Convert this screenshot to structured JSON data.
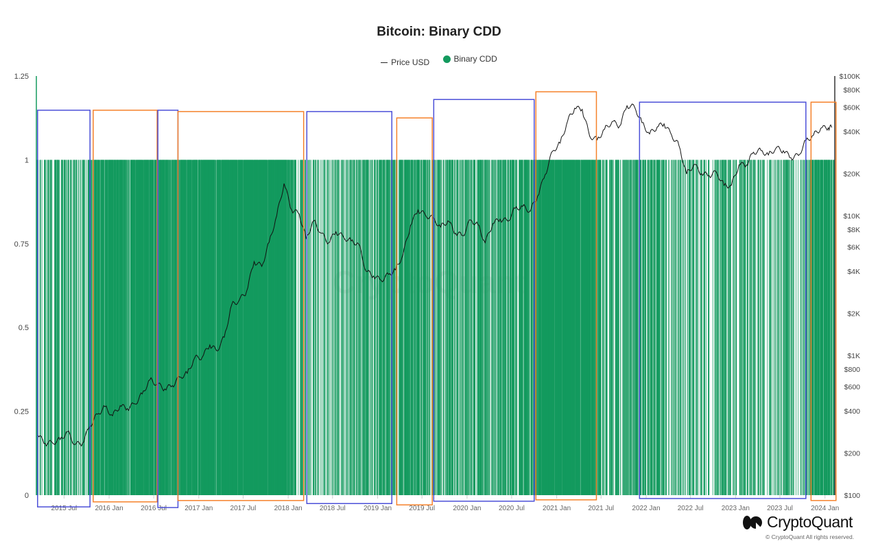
{
  "chart_data": {
    "type": "bar",
    "title": "Bitcoin: Binary CDD",
    "legend": [
      {
        "name": "Price USD",
        "color": "#222222",
        "marker": "line"
      },
      {
        "name": "Binary CDD",
        "color": "#139a5e",
        "marker": "dot"
      }
    ],
    "legend_placement": "top-center",
    "grid": false,
    "x_range": [
      "2015-03-10",
      "2024-02-10"
    ],
    "x_tick_labels": [
      "2015 Jul",
      "2016 Jan",
      "2016 Jul",
      "2017 Jan",
      "2017 Jul",
      "2018 Jan",
      "2018 Jul",
      "2019 Jan",
      "2019 Jul",
      "2020 Jan",
      "2020 Jul",
      "2021 Jan",
      "2021 Jul",
      "2022 Jan",
      "2022 Jul",
      "2023 Jan",
      "2023 Jul",
      "2024 Jan"
    ],
    "x_ticks": [
      "2015-07-01",
      "2016-01-01",
      "2016-07-01",
      "2017-01-01",
      "2017-07-01",
      "2018-01-01",
      "2018-07-01",
      "2019-01-01",
      "2019-07-01",
      "2020-01-01",
      "2020-07-01",
      "2021-01-01",
      "2021-07-01",
      "2022-01-01",
      "2022-07-01",
      "2023-01-01",
      "2023-07-01",
      "2024-01-01"
    ],
    "y_left": {
      "range": [
        0,
        1.25
      ],
      "ticks": [
        0,
        0.25,
        0.5,
        0.75,
        1,
        1.25
      ],
      "tick_labels": [
        "0",
        "0.25",
        "0.5",
        "0.75",
        "1",
        "1.25"
      ]
    },
    "y_right": {
      "scale": "log",
      "range": [
        100,
        100000
      ],
      "ticks": [
        100,
        200,
        400,
        600,
        800,
        1000,
        2000,
        4000,
        6000,
        8000,
        10000,
        20000,
        40000,
        60000,
        80000,
        100000
      ],
      "tick_labels": [
        "$100",
        "$200",
        "$400",
        "$600",
        "$800",
        "$1K",
        "$2K",
        "$4K",
        "$6K",
        "$8K",
        "$10K",
        "$20K",
        "$40K",
        "$60K",
        "$80K",
        "$100K"
      ]
    },
    "price_usd": {
      "name": "Price USD",
      "start_month": "2015-03",
      "monthly_values": [
        270,
        235,
        237,
        250,
        285,
        230,
        236,
        315,
        380,
        430,
        370,
        437,
        416,
        450,
        530,
        670,
        624,
        575,
        608,
        700,
        745,
        960,
        970,
        1190,
        1080,
        1350,
        2300,
        2480,
        2870,
        4700,
        4340,
        6450,
        10000,
        17000,
        11000,
        10300,
        6900,
        9200,
        7500,
        6400,
        7700,
        7000,
        6600,
        6300,
        4000,
        3700,
        3450,
        3800,
        4100,
        5300,
        8500,
        11000,
        10100,
        9600,
        8300,
        9200,
        7500,
        7200,
        9350,
        8600,
        6400,
        8800,
        9450,
        9150,
        11300,
        11650,
        10800,
        13800,
        19700,
        29000,
        33100,
        48000,
        58800,
        57700,
        37300,
        35000,
        41500,
        47100,
        43800,
        61300,
        60000,
        46300,
        38500,
        43200,
        45500,
        37700,
        31800,
        19900,
        23300,
        20000,
        19400,
        20500,
        16500,
        16500,
        23100,
        23100,
        28500,
        29300,
        27200,
        30500,
        29200,
        26000,
        27000,
        34500,
        37700,
        42300,
        42600,
        43000
      ]
    },
    "binary_cdd": {
      "name": "Binary CDD",
      "values_domain": [
        0,
        1
      ],
      "start_month": "2015-03",
      "monthly_share_of_days_1": [
        0.4,
        0.35,
        0.4,
        0.45,
        0.4,
        0.45,
        0.4,
        0.5,
        0.85,
        0.9,
        0.9,
        0.85,
        0.85,
        0.9,
        0.9,
        0.9,
        0.85,
        0.8,
        0.85,
        0.9,
        0.9,
        0.9,
        0.9,
        0.92,
        0.92,
        0.92,
        0.95,
        0.95,
        0.95,
        0.95,
        0.95,
        0.95,
        0.95,
        0.95,
        0.7,
        0.5,
        0.4,
        0.4,
        0.35,
        0.4,
        0.4,
        0.4,
        0.4,
        0.45,
        0.55,
        0.6,
        0.6,
        0.6,
        0.65,
        0.7,
        0.8,
        0.75,
        0.6,
        0.55,
        0.55,
        0.55,
        0.55,
        0.55,
        0.55,
        0.5,
        0.6,
        0.55,
        0.5,
        0.55,
        0.6,
        0.6,
        0.65,
        0.85,
        0.95,
        0.97,
        0.97,
        0.95,
        0.95,
        0.9,
        0.95,
        0.85,
        0.6,
        0.55,
        0.55,
        0.6,
        0.55,
        0.5,
        0.45,
        0.4,
        0.35,
        0.35,
        0.4,
        0.45,
        0.35,
        0.3,
        0.3,
        0.35,
        0.4,
        0.35,
        0.35,
        0.35,
        0.35,
        0.3,
        0.3,
        0.3,
        0.3,
        0.3,
        0.3,
        0.45,
        0.7,
        0.75,
        0.75,
        0.75
      ]
    },
    "annotations": [
      {
        "type": "box",
        "color": "#4b4fd8",
        "start": "2015-03-15",
        "end": "2015-10-15",
        "y_top": 1.148,
        "y_bottom": -0.035
      },
      {
        "type": "box",
        "color": "#f5812a",
        "start": "2015-10-28",
        "end": "2016-07-15",
        "y_top": 1.148,
        "y_bottom": -0.02
      },
      {
        "type": "box",
        "color": "#4b4fd8",
        "start": "2016-07-18",
        "end": "2016-10-08",
        "y_top": 1.148,
        "y_bottom": -0.037
      },
      {
        "type": "box",
        "color": "#f5812a",
        "start": "2016-10-08",
        "end": "2018-03-05",
        "y_top": 1.144,
        "y_bottom": -0.016
      },
      {
        "type": "box",
        "color": "#4b4fd8",
        "start": "2018-03-18",
        "end": "2019-02-28",
        "y_top": 1.144,
        "y_bottom": -0.025
      },
      {
        "type": "box",
        "color": "#f5812a",
        "start": "2019-03-20",
        "end": "2019-08-12",
        "y_top": 1.125,
        "y_bottom": -0.029
      },
      {
        "type": "box",
        "color": "#4b4fd8",
        "start": "2019-08-18",
        "end": "2020-10-01",
        "y_top": 1.18,
        "y_bottom": -0.018
      },
      {
        "type": "box",
        "color": "#f5812a",
        "start": "2020-10-08",
        "end": "2021-06-12",
        "y_top": 1.203,
        "y_bottom": -0.014
      },
      {
        "type": "box",
        "color": "#4b4fd8",
        "start": "2021-12-05",
        "end": "2023-10-15",
        "y_top": 1.172,
        "y_bottom": -0.01
      },
      {
        "type": "box",
        "color": "#f5812a",
        "start": "2023-11-05",
        "end": "2024-02-15",
        "y_top": 1.172,
        "y_bottom": -0.016
      }
    ]
  },
  "branding": {
    "logo": "CryptoQuant",
    "copyright": "© CryptoQuant All rights reserved.",
    "watermark": "CryptoQuant"
  }
}
